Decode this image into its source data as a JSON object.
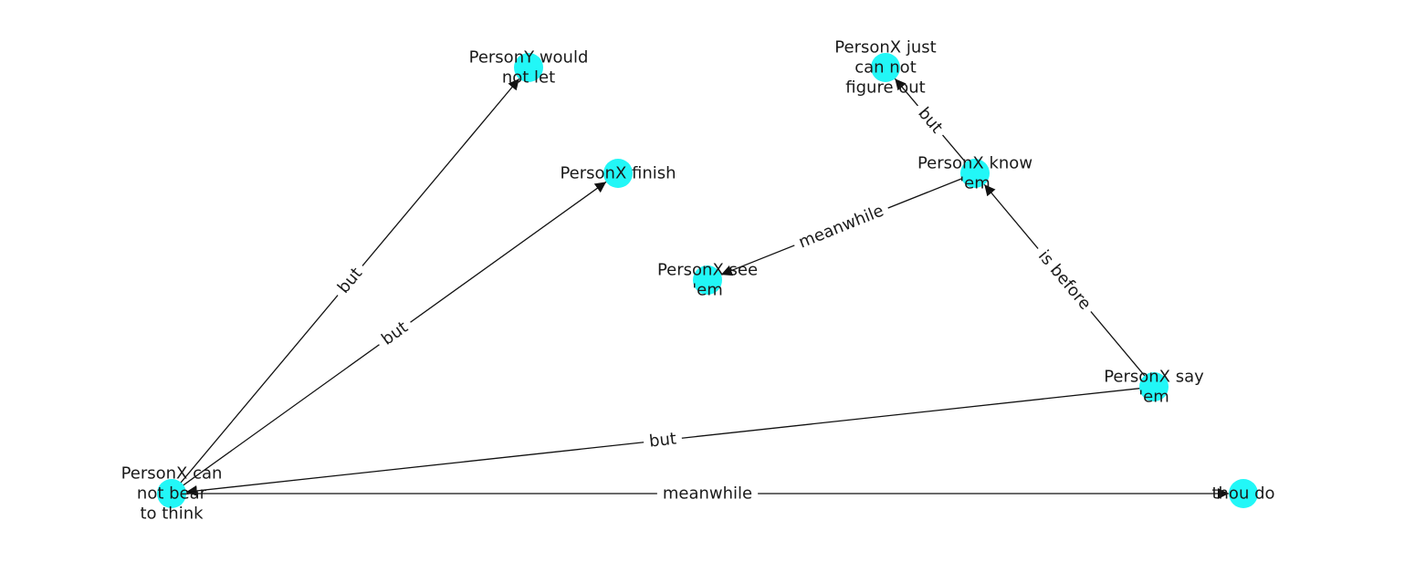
{
  "colors": {
    "node_fill": "#22f7f7",
    "edge": "#111111",
    "background": "#ffffff"
  },
  "nodes": [
    {
      "id": "cannot_bear",
      "label_lines": [
        "PersonX can",
        "not bear",
        "to think"
      ]
    },
    {
      "id": "would_not_let",
      "label_lines": [
        "PersonY would",
        "not let"
      ]
    },
    {
      "id": "finish",
      "label_lines": [
        "PersonX finish"
      ]
    },
    {
      "id": "see_em",
      "label_lines": [
        "PersonX see",
        "'em"
      ]
    },
    {
      "id": "just_cannot",
      "label_lines": [
        "PersonX just",
        "can not",
        "figure out"
      ]
    },
    {
      "id": "know_em",
      "label_lines": [
        "PersonX know",
        "'em"
      ]
    },
    {
      "id": "say_em",
      "label_lines": [
        "PersonX say",
        "'em"
      ]
    },
    {
      "id": "thou_do",
      "label_lines": [
        "thou do"
      ]
    }
  ],
  "edges": [
    {
      "source": "cannot_bear",
      "target": "would_not_let",
      "label": "but"
    },
    {
      "source": "cannot_bear",
      "target": "finish",
      "label": "but"
    },
    {
      "source": "cannot_bear",
      "target": "thou_do",
      "label": "meanwhile"
    },
    {
      "source": "say_em",
      "target": "cannot_bear",
      "label": "but"
    },
    {
      "source": "say_em",
      "target": "know_em",
      "label": "is before"
    },
    {
      "source": "know_em",
      "target": "just_cannot",
      "label": "but"
    },
    {
      "source": "know_em",
      "target": "see_em",
      "label": "meanwhile"
    }
  ]
}
